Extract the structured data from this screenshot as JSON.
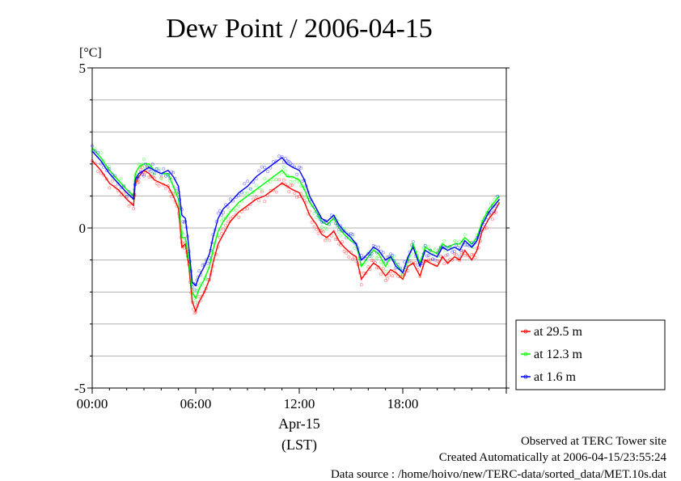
{
  "chart_data": {
    "type": "line",
    "title": "Dew Point / 2006-04-15",
    "ylabel": "[°C]",
    "x_date_label": "Apr-15",
    "xlabel": "(LST)",
    "ylim": [
      -5,
      5
    ],
    "yticks": [
      "5",
      "0",
      "-5"
    ],
    "xlim": [
      0,
      24
    ],
    "xticks": [
      {
        "value": 0,
        "label": "00:00"
      },
      {
        "value": 6,
        "label": "06:00"
      },
      {
        "value": 12,
        "label": "12:00"
      },
      {
        "value": 18,
        "label": "18:00"
      }
    ],
    "grid": true,
    "legend_position": "right",
    "x": [
      0,
      0.5,
      1,
      1.5,
      2,
      2.4,
      2.5,
      2.7,
      3,
      3.3,
      3.6,
      4,
      4.4,
      4.7,
      5,
      5.2,
      5.4,
      5.6,
      5.8,
      6,
      6.2,
      6.5,
      6.8,
      7,
      7.3,
      7.6,
      8,
      8.5,
      9,
      9.5,
      10,
      10.5,
      11,
      11.3,
      11.6,
      12,
      12.3,
      12.6,
      13,
      13.3,
      13.6,
      14,
      14.3,
      14.6,
      15,
      15.3,
      15.6,
      16,
      16.3,
      16.6,
      17,
      17.3,
      17.6,
      18,
      18.3,
      18.6,
      19,
      19.3,
      19.6,
      20,
      20.3,
      20.6,
      21,
      21.3,
      21.6,
      22,
      22.3,
      22.6,
      23,
      23.3,
      23.6
    ],
    "series": [
      {
        "name": "at 29.5 m",
        "color": "#ff0000",
        "values": [
          2.1,
          1.8,
          1.4,
          1.2,
          0.9,
          0.7,
          1.4,
          1.6,
          1.8,
          1.7,
          1.5,
          1.4,
          1.3,
          1.0,
          0.6,
          -0.6,
          -0.5,
          -1.2,
          -2.3,
          -2.6,
          -2.3,
          -2.0,
          -1.6,
          -1.1,
          -0.5,
          -0.2,
          0.2,
          0.5,
          0.7,
          0.9,
          1.0,
          1.2,
          1.4,
          1.3,
          1.2,
          1.1,
          0.8,
          0.4,
          0.1,
          -0.2,
          -0.3,
          -0.1,
          -0.4,
          -0.6,
          -0.8,
          -0.9,
          -1.6,
          -1.3,
          -1.1,
          -1.2,
          -1.5,
          -1.3,
          -1.4,
          -1.6,
          -1.2,
          -1.1,
          -1.5,
          -1.0,
          -1.1,
          -1.2,
          -0.9,
          -1.1,
          -0.9,
          -1.0,
          -0.7,
          -1.0,
          -0.7,
          -0.1,
          0.3,
          0.5,
          0.8
        ]
      },
      {
        "name": "at 12.3 m",
        "color": "#00ff00",
        "values": [
          2.5,
          2.2,
          1.8,
          1.5,
          1.2,
          1.0,
          1.7,
          1.9,
          2.0,
          2.0,
          1.8,
          1.7,
          1.7,
          1.3,
          0.9,
          -0.3,
          -0.3,
          -1.0,
          -2.0,
          -2.2,
          -1.9,
          -1.6,
          -1.2,
          -0.7,
          -0.1,
          0.2,
          0.5,
          0.8,
          1.0,
          1.2,
          1.4,
          1.6,
          1.8,
          1.6,
          1.6,
          1.5,
          1.2,
          0.8,
          0.5,
          0.2,
          0.1,
          0.3,
          0.0,
          -0.2,
          -0.4,
          -0.5,
          -1.2,
          -0.9,
          -0.7,
          -0.8,
          -1.2,
          -0.9,
          -1.1,
          -1.4,
          -1.0,
          -0.5,
          -1.1,
          -0.6,
          -0.7,
          -0.8,
          -0.5,
          -0.6,
          -0.5,
          -0.5,
          -0.3,
          -0.5,
          -0.3,
          0.2,
          0.6,
          0.8,
          1.0
        ]
      },
      {
        "name": "at 1.6 m",
        "color": "#0000ff",
        "values": [
          2.4,
          2.1,
          1.7,
          1.4,
          1.1,
          0.9,
          1.5,
          1.7,
          1.8,
          1.9,
          1.8,
          1.7,
          1.8,
          1.6,
          1.3,
          0.4,
          0.3,
          -0.6,
          -1.7,
          -1.8,
          -1.5,
          -1.2,
          -0.8,
          -0.3,
          0.3,
          0.6,
          0.8,
          1.1,
          1.3,
          1.6,
          1.8,
          2.0,
          2.2,
          2.0,
          1.9,
          1.8,
          1.5,
          1.0,
          0.6,
          0.3,
          0.2,
          0.4,
          0.1,
          -0.1,
          -0.3,
          -0.5,
          -1.0,
          -0.8,
          -0.6,
          -0.7,
          -1.0,
          -0.9,
          -1.2,
          -1.4,
          -0.9,
          -0.6,
          -1.2,
          -0.7,
          -0.8,
          -0.9,
          -0.6,
          -0.7,
          -0.6,
          -0.7,
          -0.4,
          -0.6,
          -0.4,
          0.1,
          0.5,
          0.7,
          0.9
        ]
      }
    ]
  },
  "footer": {
    "line1": "Observed at TERC Tower site",
    "line2": "Created Automatically at 2006-04-15/23:55:24",
    "line3": "Data source : /home/hoivo/new/TERC-data/sorted_data/MET.10s.dat"
  }
}
